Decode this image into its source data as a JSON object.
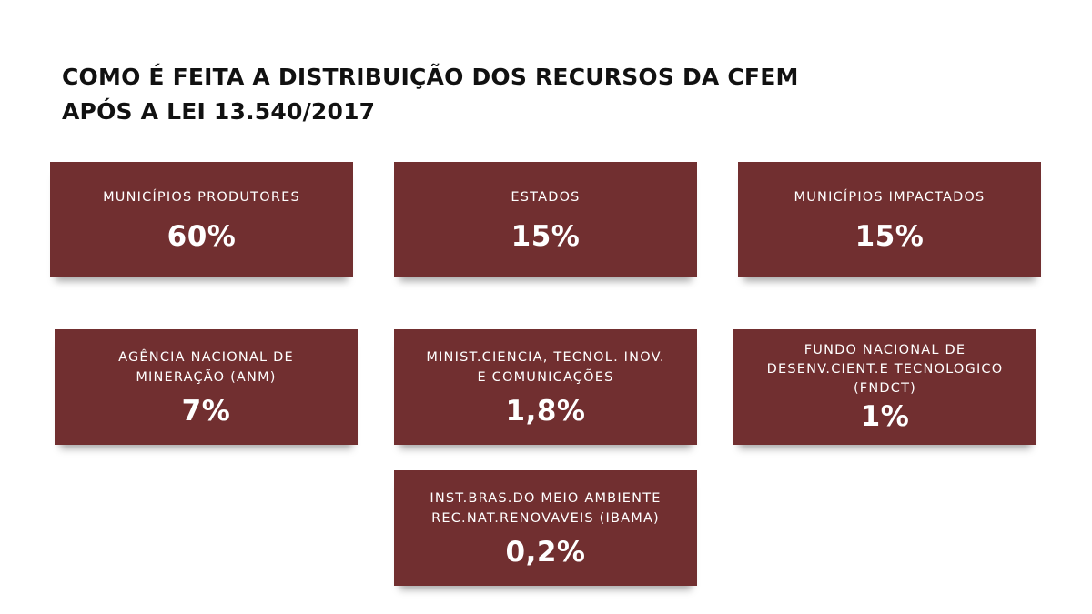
{
  "title": [
    "COMO É FEITA A DISTRIBUIÇÃO DOS RECURSOS DA CFEM",
    "APÓS A LEI 13.540/2017"
  ],
  "cards": [
    {
      "label": [
        "MUNICÍPIOS PRODUTORES"
      ],
      "value": "60%"
    },
    {
      "label": [
        "ESTADOS"
      ],
      "value": "15%"
    },
    {
      "label": [
        "MUNICÍPIOS IMPACTADOS"
      ],
      "value": "15%"
    },
    {
      "label": [
        "AGÊNCIA NACIONAL DE",
        "MINERAÇÃO (ANM)"
      ],
      "value": "7%"
    },
    {
      "label": [
        "MINIST.CIENCIA, TECNOL. INOV.",
        "E COMUNICAÇÕES"
      ],
      "value": "1,8%"
    },
    {
      "label": [
        "FUNDO NACIONAL DE",
        "DESENV.CIENT.E TECNOLOGICO",
        "(FNDCT)"
      ],
      "value": "1%"
    },
    {
      "label": [
        "INST.BRAS.DO MEIO AMBIENTE",
        "REC.NAT.RENOVAVEIS (IBAMA)"
      ],
      "value": "0,2%"
    }
  ]
}
